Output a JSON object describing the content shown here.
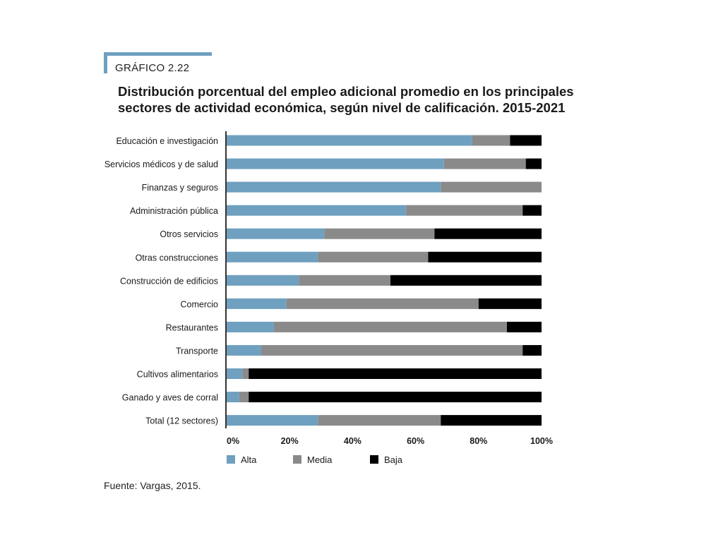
{
  "header": {
    "figure_label": "GRÁFICO 2.22",
    "title": "Distribución porcentual del empleo adicional promedio en los principales sectores de actividad económica, según nivel de calificación. 2015-2021"
  },
  "source": "Fuente: Vargas, 2015.",
  "colors": {
    "accent": "#6fa0bf",
    "alta": "#6fa0bf",
    "media": "#8a8a8a",
    "baja": "#000000"
  },
  "chart_data": {
    "type": "bar",
    "orientation": "horizontal",
    "stacked": true,
    "categories": [
      "Educación e investigación",
      "Servicios médicos y de salud",
      "Finanzas y seguros",
      "Administración pública",
      "Otros servicios",
      "Otras construcciones",
      "Construcción de edificios",
      "Comercio",
      "Restaurantes",
      "Transporte",
      "Cultivos alimentarios",
      "Ganado y aves de corral",
      "Total (12 sectores)"
    ],
    "series": [
      {
        "name": "Alta",
        "color": "#6fa0bf",
        "values": [
          78,
          69,
          68,
          57,
          31,
          29,
          23,
          19,
          15,
          11,
          5,
          4,
          29
        ]
      },
      {
        "name": "Media",
        "color": "#8a8a8a",
        "values": [
          12,
          26,
          32,
          37,
          35,
          35,
          29,
          61,
          74,
          83,
          2,
          3,
          39
        ]
      },
      {
        "name": "Baja",
        "color": "#000000",
        "values": [
          10,
          5,
          0,
          6,
          34,
          36,
          48,
          20,
          11,
          6,
          93,
          93,
          32
        ]
      }
    ],
    "x_ticks": [
      "0%",
      "20%",
      "40%",
      "60%",
      "80%",
      "100%"
    ],
    "xlim": [
      0,
      100
    ],
    "legend_position": "bottom-left",
    "grid": false
  }
}
